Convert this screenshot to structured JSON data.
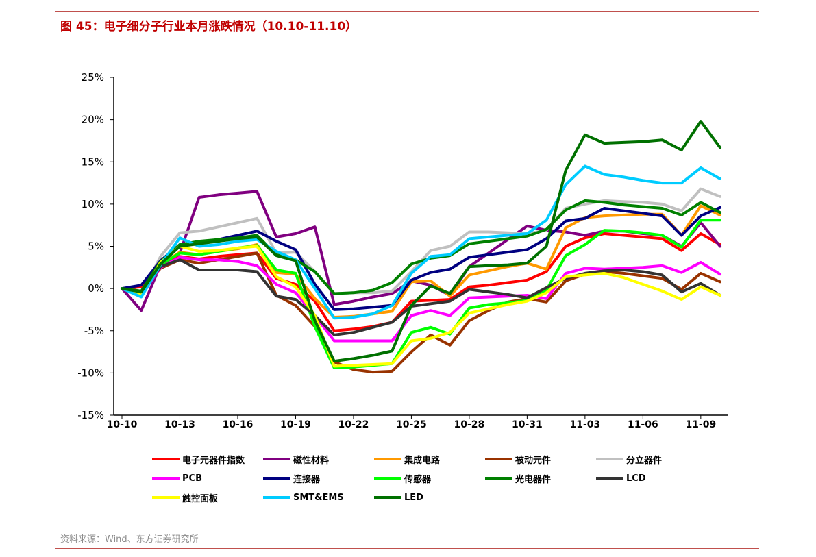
{
  "title": "图 45：电子细分子行业本月涨跌情况（10.10-11.10）",
  "source": "资料来源：Wind、东方证券研究所",
  "chart_data": {
    "type": "line",
    "title": "",
    "xlabel": "",
    "ylabel": "",
    "ylim": [
      -15,
      25
    ],
    "yticks": [
      -15,
      -10,
      -5,
      0,
      5,
      10,
      15,
      20,
      25
    ],
    "ytick_labels": [
      "-15%",
      "-10%",
      "-5%",
      "0%",
      "5%",
      "10%",
      "15%",
      "20%",
      "25%"
    ],
    "xticks": [
      "10-10",
      "10-13",
      "10-16",
      "10-19",
      "10-22",
      "10-25",
      "10-28",
      "10-31",
      "11-03",
      "11-06",
      "11-09"
    ],
    "grid": false,
    "legend_position": "bottom",
    "x": [
      "10-10",
      "10-11",
      "10-12",
      "10-13",
      "10-14",
      "10-15",
      "10-16",
      "10-17",
      "10-18",
      "10-19",
      "10-20",
      "10-21",
      "10-22",
      "10-23",
      "10-24",
      "10-25",
      "10-26",
      "10-27",
      "10-28",
      "10-29",
      "10-30",
      "10-31",
      "11-01",
      "11-02",
      "11-03",
      "11-04",
      "11-05",
      "11-06",
      "11-07",
      "11-08",
      "11-09",
      "11-10"
    ],
    "series": [
      {
        "name": "电子元器件指数",
        "color": "#ff0000",
        "values": [
          0,
          0.2,
          2.5,
          3.8,
          3.5,
          3.8,
          4.0,
          4.2,
          1.2,
          0.5,
          -1.5,
          -5.0,
          -4.8,
          -4.5,
          -4.0,
          -1.5,
          -1.4,
          -1.3,
          0.2,
          0.4,
          0.7,
          1.0,
          2.0,
          5.0,
          6.0,
          6.5,
          6.3,
          6.1,
          5.9,
          4.5,
          6.5,
          5.2
        ]
      },
      {
        "name": "磁性材料",
        "color": "#800080",
        "values": [
          0,
          -2.6,
          2.8,
          4.2,
          10.8,
          11.1,
          11.3,
          11.5,
          6.1,
          6.5,
          7.3,
          -1.9,
          -1.5,
          -1.0,
          -0.6,
          0.9,
          0.4,
          -0.8,
          2.6,
          4.2,
          5.8,
          7.4,
          6.9,
          6.7,
          6.3,
          6.8,
          6.8,
          6.5,
          6.3,
          5.0,
          7.8,
          5.0
        ]
      },
      {
        "name": "集成电路",
        "color": "#ff9900",
        "values": [
          0,
          -0.3,
          2.8,
          4.3,
          4.0,
          4.4,
          4.7,
          5.2,
          1.9,
          1.7,
          -1.2,
          -3.4,
          -3.3,
          -3.0,
          -2.7,
          0.8,
          0.9,
          -0.9,
          1.6,
          2.1,
          2.6,
          3.0,
          2.3,
          7.2,
          8.4,
          8.6,
          8.7,
          8.8,
          8.8,
          6.3,
          9.8,
          8.7
        ]
      },
      {
        "name": "被动元件",
        "color": "#993300",
        "values": [
          0,
          -0.4,
          2.4,
          3.4,
          3.0,
          3.4,
          3.8,
          4.2,
          -0.8,
          -2.0,
          -4.5,
          -8.7,
          -9.6,
          -9.9,
          -9.8,
          -7.5,
          -5.5,
          -6.7,
          -3.8,
          -2.6,
          -1.6,
          -1.2,
          -1.6,
          0.9,
          1.7,
          2.0,
          1.8,
          1.5,
          1.2,
          -0.1,
          1.8,
          0.8
        ]
      },
      {
        "name": "分立器件",
        "color": "#c0c0c0",
        "values": [
          0,
          -0.6,
          3.8,
          6.6,
          6.8,
          7.3,
          7.8,
          8.3,
          4.2,
          4.3,
          2.0,
          -0.6,
          -0.5,
          -0.5,
          -0.3,
          2.0,
          4.5,
          5.0,
          6.7,
          6.7,
          6.6,
          6.5,
          6.9,
          9.5,
          10.0,
          10.4,
          10.3,
          10.2,
          10.0,
          9.2,
          11.8,
          10.9
        ]
      },
      {
        "name": "PCB",
        "color": "#ff00ff",
        "values": [
          0,
          -0.8,
          2.5,
          3.7,
          3.4,
          3.4,
          3.2,
          2.7,
          0.5,
          -0.5,
          -3.2,
          -6.2,
          -6.2,
          -6.2,
          -6.2,
          -3.2,
          -2.6,
          -3.2,
          -1.1,
          -1.0,
          -0.9,
          -0.8,
          -1.2,
          1.8,
          2.4,
          2.3,
          2.4,
          2.5,
          2.7,
          1.9,
          3.1,
          1.7
        ]
      },
      {
        "name": "连接器",
        "color": "#000080",
        "values": [
          0,
          0.4,
          3.3,
          5.2,
          5.5,
          5.8,
          6.3,
          6.8,
          5.6,
          4.6,
          0.5,
          -2.5,
          -2.4,
          -2.2,
          -2.0,
          1.0,
          1.9,
          2.3,
          3.7,
          4.0,
          4.3,
          4.6,
          5.9,
          8.0,
          8.3,
          9.5,
          9.2,
          8.9,
          8.6,
          6.3,
          8.6,
          9.6
        ]
      },
      {
        "name": "传感器",
        "color": "#00ff00",
        "values": [
          0,
          -0.6,
          2.8,
          4.2,
          4.0,
          4.4,
          4.8,
          5.1,
          2.2,
          1.8,
          -4.5,
          -9.4,
          -9.3,
          -9.1,
          -8.9,
          -5.2,
          -4.6,
          -5.4,
          -2.3,
          -1.9,
          -1.7,
          -1.4,
          -0.2,
          3.9,
          5.2,
          6.9,
          6.8,
          6.6,
          6.3,
          4.9,
          8.1,
          8.1
        ]
      },
      {
        "name": "光电器件",
        "color": "#008000",
        "values": [
          0,
          -0.3,
          3.2,
          5.2,
          5.6,
          5.8,
          6.0,
          6.3,
          4.0,
          3.4,
          2.0,
          -0.6,
          -0.5,
          -0.2,
          0.7,
          2.9,
          3.6,
          3.9,
          5.3,
          5.6,
          5.9,
          6.2,
          7.0,
          9.3,
          10.4,
          10.2,
          9.9,
          9.7,
          9.5,
          8.7,
          10.2,
          9.0
        ]
      },
      {
        "name": "LCD",
        "color": "#333333",
        "values": [
          0,
          -0.7,
          2.6,
          3.4,
          2.2,
          2.2,
          2.2,
          2.0,
          -0.9,
          -1.3,
          -3.2,
          -5.5,
          -5.2,
          -4.6,
          -4.0,
          -2.1,
          -1.8,
          -1.5,
          -0.1,
          -0.4,
          -0.7,
          -1.1,
          0.1,
          1.2,
          1.8,
          2.1,
          2.2,
          2.0,
          1.6,
          -0.4,
          0.6,
          -0.8
        ]
      },
      {
        "name": "触控面板",
        "color": "#ffff00",
        "values": [
          0,
          -0.8,
          3.1,
          5.0,
          4.4,
          4.5,
          4.8,
          5.0,
          1.4,
          0.2,
          -3.2,
          -9.2,
          -9.1,
          -9.0,
          -8.9,
          -6.2,
          -5.9,
          -5.2,
          -2.9,
          -2.4,
          -1.9,
          -1.5,
          -0.5,
          1.4,
          1.6,
          1.8,
          1.3,
          0.5,
          -0.3,
          -1.3,
          0.2,
          -0.8
        ]
      },
      {
        "name": "SMT&EMS",
        "color": "#00ccff",
        "values": [
          0,
          -1.0,
          2.8,
          6.0,
          5.0,
          5.2,
          5.6,
          5.8,
          4.4,
          3.4,
          0.0,
          -3.5,
          -3.4,
          -3.0,
          -2.0,
          1.8,
          3.8,
          4.0,
          5.9,
          6.1,
          6.3,
          6.5,
          8.1,
          12.3,
          14.5,
          13.5,
          13.2,
          12.8,
          12.5,
          12.5,
          14.3,
          13.0
        ]
      },
      {
        "name": "LED",
        "color": "#007000",
        "values": [
          0,
          -0.4,
          2.9,
          5.0,
          5.3,
          5.6,
          5.9,
          6.1,
          3.9,
          3.3,
          -3.8,
          -8.6,
          -8.3,
          -7.9,
          -7.4,
          -2.0,
          0.3,
          -0.6,
          2.6,
          2.7,
          2.8,
          3.0,
          5.0,
          14.0,
          18.2,
          17.2,
          17.3,
          17.4,
          17.6,
          16.4,
          19.8,
          16.7
        ]
      }
    ]
  }
}
